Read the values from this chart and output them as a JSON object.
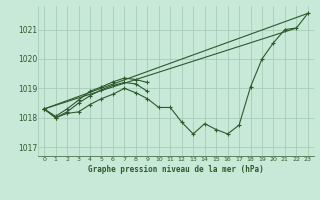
{
  "title": "Graphe pression niveau de la mer (hPa)",
  "background_color": "#c8e8d8",
  "grid_color": "#a0c8b0",
  "line_color": "#2d5a2d",
  "xlim": [
    -0.5,
    23.5
  ],
  "ylim": [
    1016.7,
    1021.8
  ],
  "yticks": [
    1017,
    1018,
    1019,
    1020,
    1021
  ],
  "xticks": [
    0,
    1,
    2,
    3,
    4,
    5,
    6,
    7,
    8,
    9,
    10,
    11,
    12,
    13,
    14,
    15,
    16,
    17,
    18,
    19,
    20,
    21,
    22,
    23
  ],
  "series_main": [
    1018.3,
    1018.0,
    1018.15,
    1018.2,
    1018.45,
    1018.65,
    1018.8,
    1019.0,
    1018.85,
    1018.65,
    1018.35,
    1018.35,
    1017.85,
    1017.45,
    1017.8,
    1017.6,
    1017.45,
    1017.75,
    1019.05,
    1020.0,
    1020.55,
    1021.0,
    1021.05,
    1021.55
  ],
  "series_short2": [
    [
      0,
      1018.3
    ],
    [
      1,
      1018.0
    ],
    [
      2,
      1018.2
    ],
    [
      3,
      1018.5
    ],
    [
      4,
      1018.75
    ],
    [
      5,
      1018.95
    ],
    [
      6,
      1019.1
    ],
    [
      7,
      1019.2
    ],
    [
      8,
      1019.15
    ],
    [
      9,
      1018.9
    ]
  ],
  "series_short3": [
    [
      0,
      1018.3
    ],
    [
      1,
      1018.05
    ],
    [
      2,
      1018.3
    ],
    [
      3,
      1018.6
    ],
    [
      4,
      1018.9
    ],
    [
      5,
      1019.05
    ],
    [
      6,
      1019.22
    ],
    [
      7,
      1019.35
    ],
    [
      8,
      1019.3
    ],
    [
      9,
      1019.2
    ]
  ],
  "series_line_x": [
    0,
    23
  ],
  "series_line_y": [
    1018.3,
    1021.55
  ],
  "series_line2_x": [
    0,
    22
  ],
  "series_line2_y": [
    1018.3,
    1021.05
  ]
}
